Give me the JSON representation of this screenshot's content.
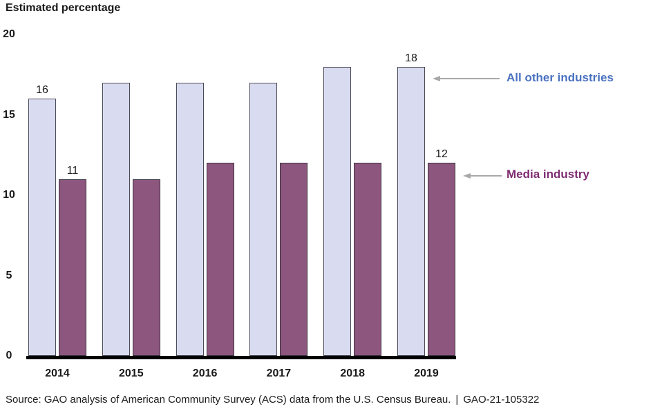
{
  "chart_data": {
    "type": "bar",
    "title": "Estimated percentage",
    "categories": [
      "2014",
      "2015",
      "2016",
      "2017",
      "2018",
      "2019"
    ],
    "series": [
      {
        "name": "All other industries",
        "values": [
          16,
          17,
          17,
          17,
          18,
          18
        ],
        "value_labels": [
          "16",
          "",
          "",
          "",
          "",
          "18"
        ],
        "fill": "#d9dcf0",
        "border": "#4a4a55",
        "text_color": "#4a72c0"
      },
      {
        "name": "Media industry",
        "values": [
          11,
          11,
          12,
          12,
          12,
          12
        ],
        "value_labels": [
          "11",
          "",
          "",
          "",
          "",
          "12"
        ],
        "fill": "#8c567f",
        "border": "#38313c",
        "text_color": "#7e2c71"
      }
    ],
    "y_ticks": [
      0,
      5,
      10,
      15,
      20
    ],
    "ylim": [
      0,
      20
    ],
    "grid": false,
    "legend_position": "right annotations with left-pointing arrows",
    "source": "Source: GAO analysis of American Community Survey (ACS) data from the U.S. Census Bureau.",
    "source_separator": "|",
    "report_number": "GAO-21-105322"
  },
  "colors": {
    "arrow": "#a8a8a8",
    "axis_line": "#000000",
    "all_other_fill": "#d9dcf0",
    "media_fill": "#8c567f",
    "all_other_text": "#4a72c0",
    "media_text": "#7e2c71"
  }
}
